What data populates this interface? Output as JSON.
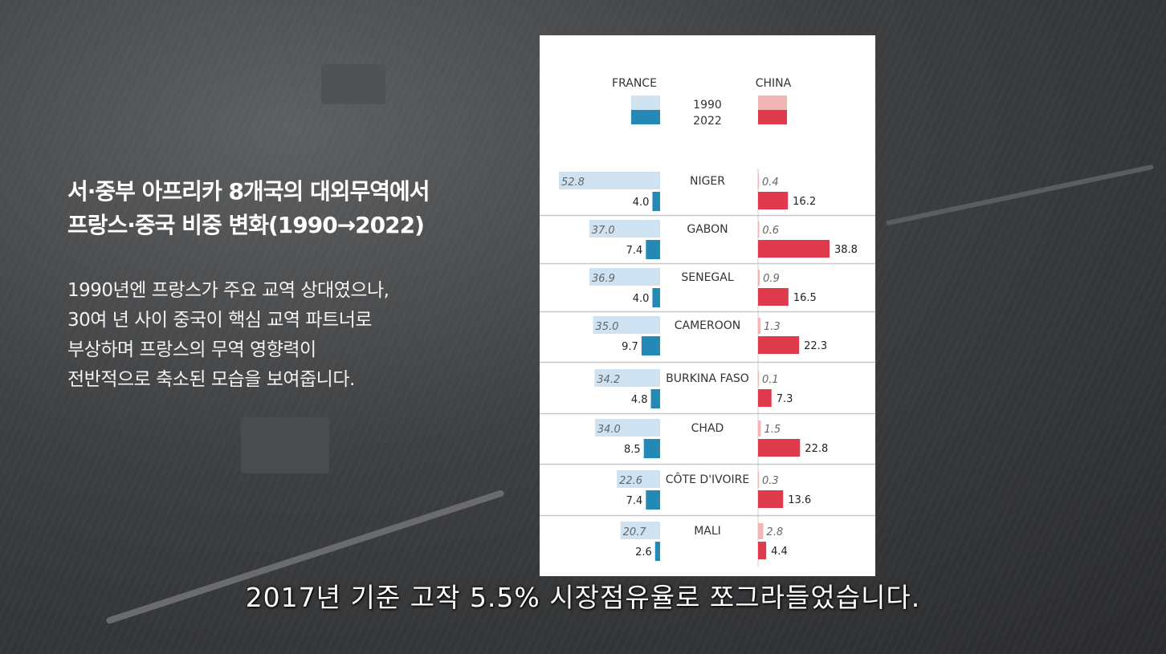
{
  "title": {
    "line1": "서·중부 아프리카 8개국의 대외무역에서",
    "line2": "프랑스·중국 비중 변화(1990→2022)"
  },
  "description": {
    "line1": "1990년엔 프랑스가 주요 교역 상대였으나,",
    "line2": "30여 년 사이 중국이 핵심 교역 파트너로",
    "line3": "부상하며 프랑스의 무역 영향력이",
    "line4": "전반적으로 축소된 모습을 보여줍니다."
  },
  "subtitle": "2017년 기준 고작 5.5% 시장점유율로 쪼그라들었습니다.",
  "colors": {
    "france_1990": "#cfe2f1",
    "france_2022": "#2489b4",
    "china_1990": "#f2b6b6",
    "china_2022": "#e03a4e"
  },
  "chart_data": {
    "type": "bar",
    "legend": {
      "series_left": "FRANCE",
      "series_right": "CHINA",
      "year_old": "1990",
      "year_new": "2022"
    },
    "categories": [
      "NIGER",
      "GABON",
      "SENEGAL",
      "CAMEROON",
      "BURKINA FASO",
      "CHAD",
      "CÔTE D'IVOIRE",
      "MALI"
    ],
    "series": [
      {
        "name": "FRANCE 1990",
        "values": [
          52.8,
          37.0,
          36.9,
          35.0,
          34.2,
          34.0,
          22.6,
          20.7
        ]
      },
      {
        "name": "FRANCE 2022",
        "values": [
          4.0,
          7.4,
          4.0,
          9.7,
          4.8,
          8.5,
          7.4,
          2.6
        ]
      },
      {
        "name": "CHINA 1990",
        "values": [
          0.4,
          0.6,
          0.9,
          1.3,
          0.1,
          1.5,
          0.3,
          2.8
        ]
      },
      {
        "name": "CHINA 2022",
        "values": [
          16.2,
          38.8,
          16.5,
          22.3,
          7.3,
          22.8,
          13.6,
          4.4
        ]
      }
    ],
    "value_labels_left_1990": [
      "52.8",
      "37.0",
      "36.9",
      "35.0",
      "34.2",
      "34.0",
      "22.6",
      "20.7"
    ],
    "value_labels_left_2022": [
      "4.0",
      "7.4",
      "4.0",
      "9.7",
      "4.8",
      "8.5",
      "7.4",
      "2.6"
    ],
    "value_labels_right_1990": [
      "0.4",
      "0.6",
      "0.9",
      "1.3",
      "0.1",
      "1.5",
      "0.3",
      "2.8"
    ],
    "value_labels_right_2022": [
      "16.2",
      "38.8",
      "16.5",
      "22.3",
      "7.3",
      "22.8",
      "13.6",
      "4.4"
    ]
  }
}
